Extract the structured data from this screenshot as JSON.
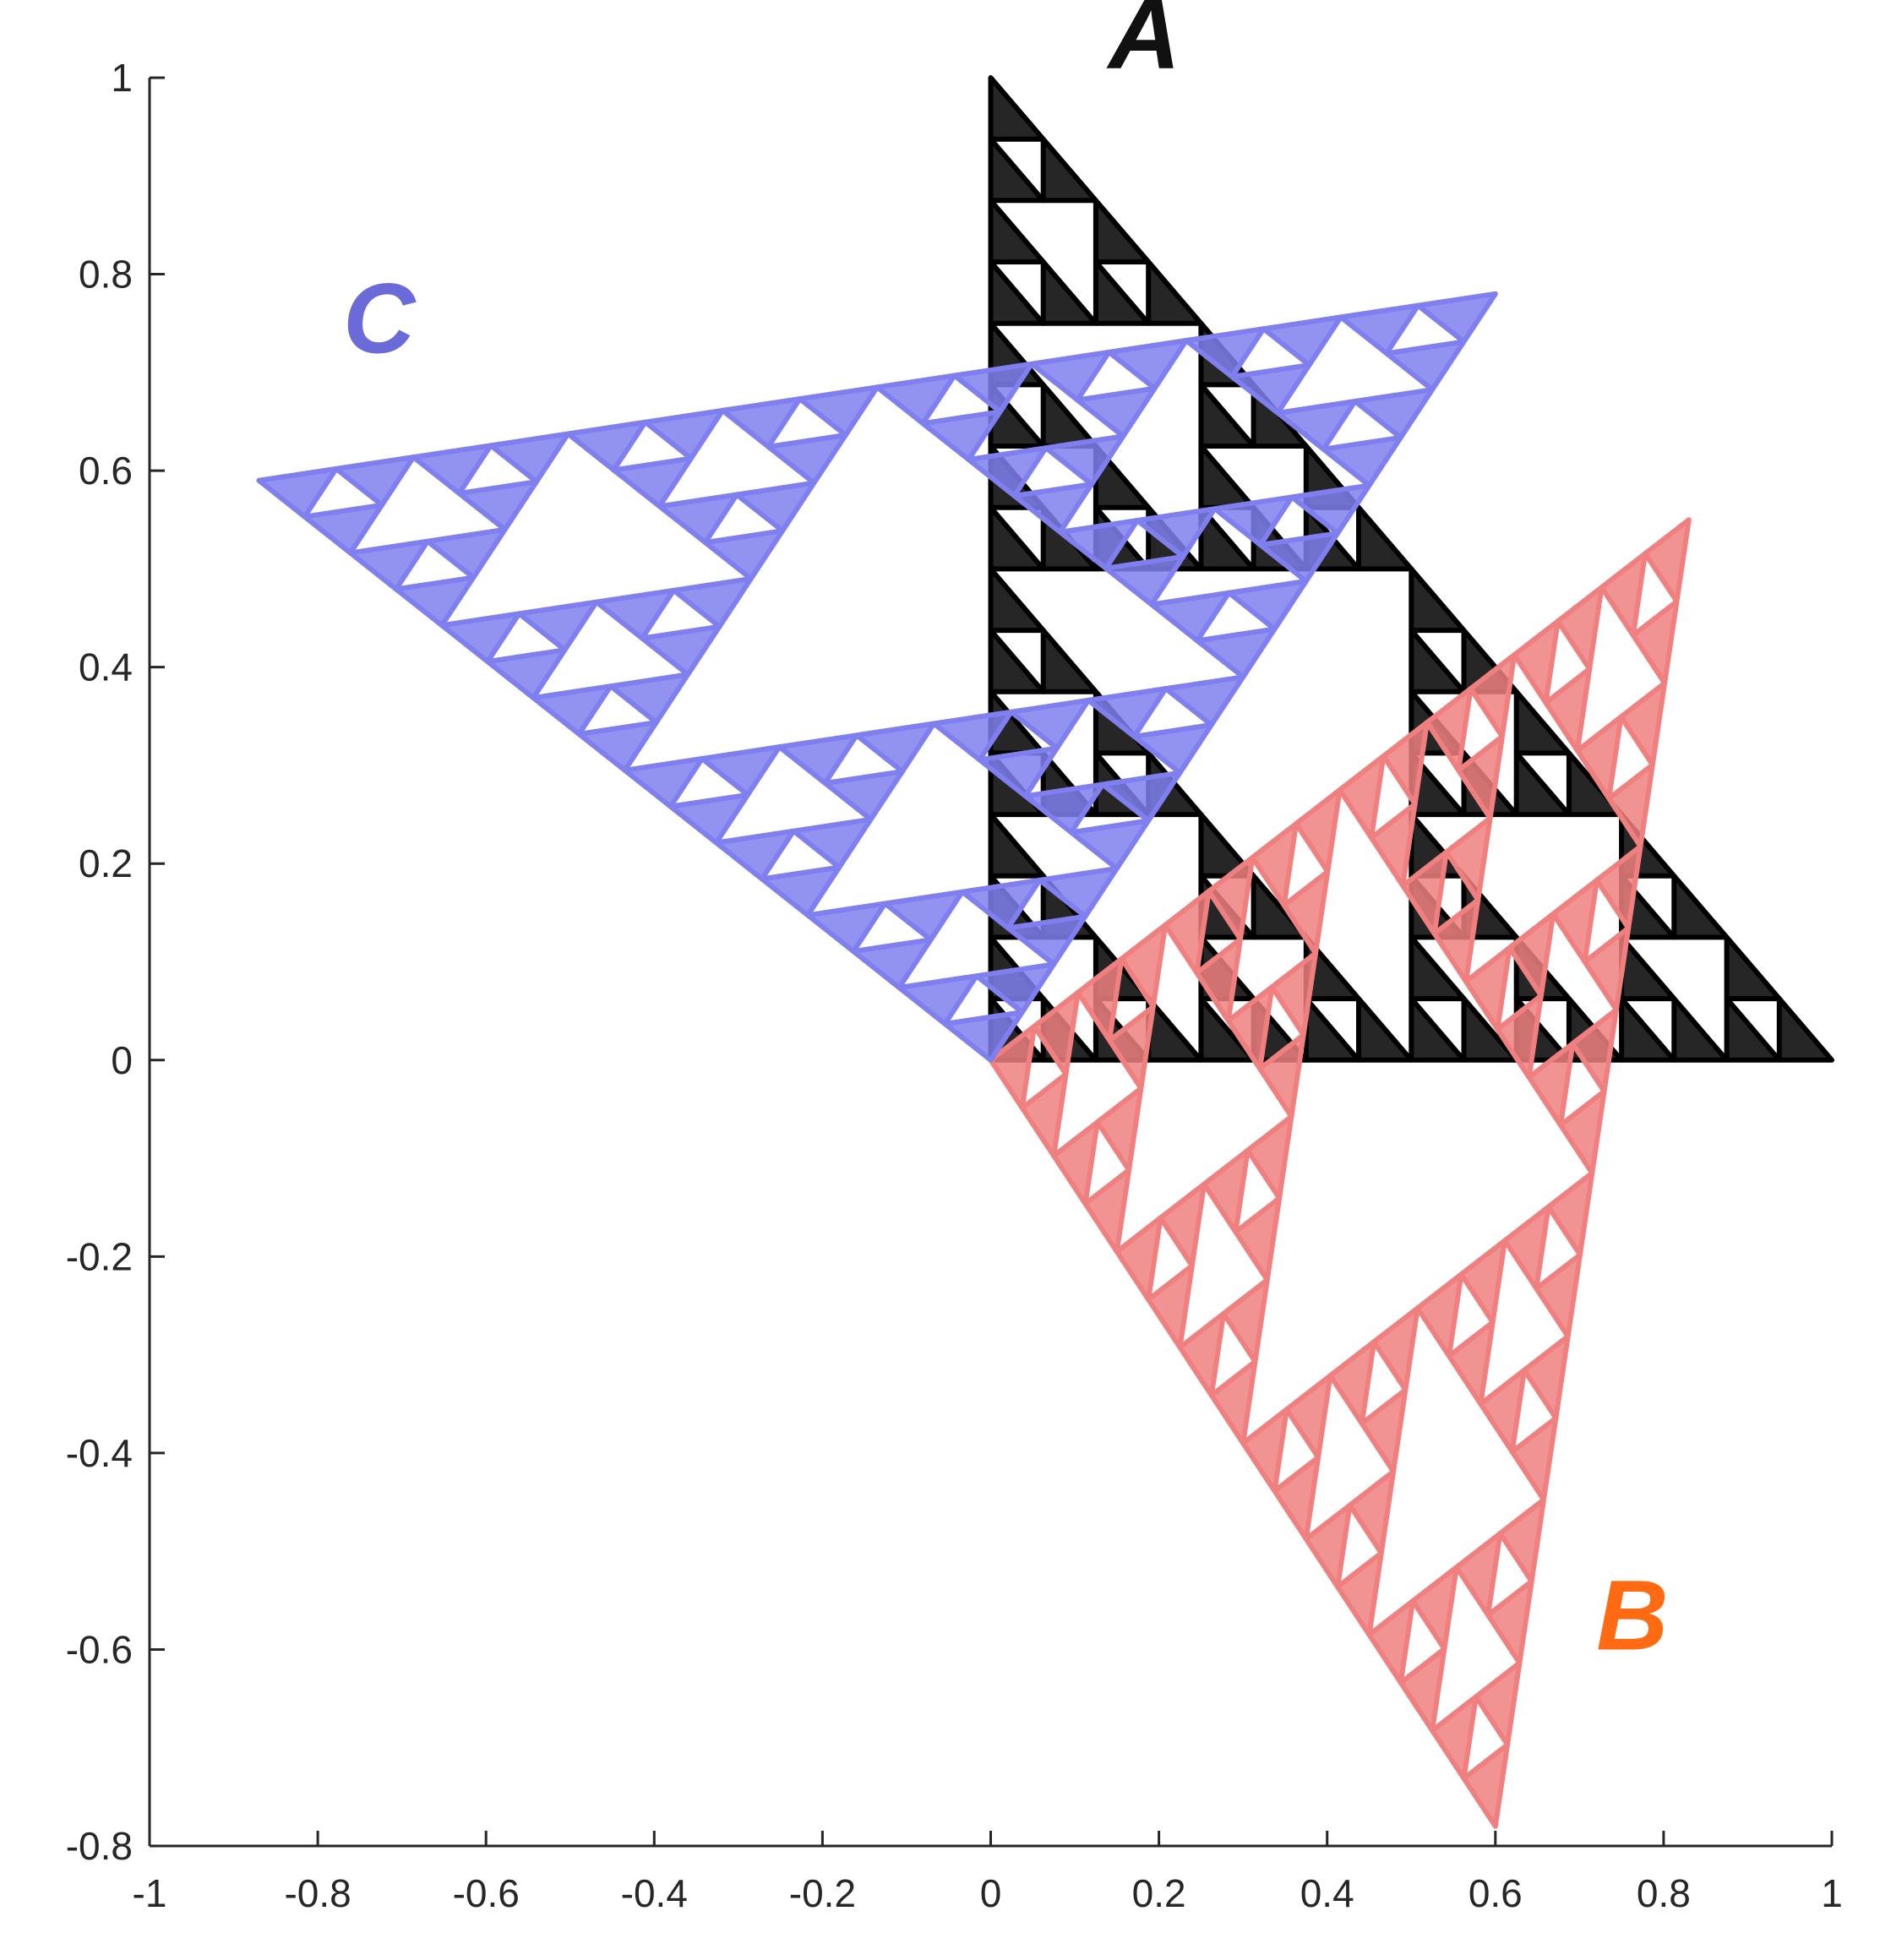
{
  "chart_data": {
    "type": "scatter",
    "title": "",
    "xlabel": "",
    "ylabel": "",
    "xlim": [
      -1,
      1
    ],
    "ylim": [
      -0.8,
      1
    ],
    "x_ticks": [
      -1,
      -0.8,
      -0.6,
      -0.4,
      -0.2,
      0,
      0.2,
      0.4,
      0.6,
      0.8,
      1
    ],
    "x_tick_labels": [
      "-1",
      "-0.8",
      "-0.6",
      "-0.4",
      "-0.2",
      "0",
      "0.2",
      "0.4",
      "0.6",
      "0.8",
      "1"
    ],
    "y_ticks": [
      -0.8,
      -0.6,
      -0.4,
      -0.2,
      0,
      0.2,
      0.4,
      0.6,
      0.8,
      1
    ],
    "y_tick_labels": [
      "-0.8",
      "-0.6",
      "-0.4",
      "-0.2",
      "0",
      "0.2",
      "0.4",
      "0.6",
      "0.8",
      "1"
    ],
    "grid": false,
    "legend": "none",
    "depth": 4,
    "series": [
      {
        "name": "A",
        "color": "#000000",
        "triangle": [
          [
            0,
            0
          ],
          [
            1,
            0
          ],
          [
            0,
            1
          ]
        ],
        "label_position": [
          0.14,
          1.01
        ]
      },
      {
        "name": "B",
        "color": "#f08080",
        "triangle": [
          [
            0,
            0
          ],
          [
            0.6,
            -0.78
          ],
          [
            0.83,
            0.55
          ]
        ],
        "label_position": [
          0.72,
          -0.6
        ]
      },
      {
        "name": "C",
        "color": "#7f7fef",
        "triangle": [
          [
            0,
            0
          ],
          [
            -0.87,
            0.59
          ],
          [
            0.6,
            0.78
          ]
        ],
        "label_position": [
          -0.77,
          0.72
        ]
      }
    ]
  }
}
